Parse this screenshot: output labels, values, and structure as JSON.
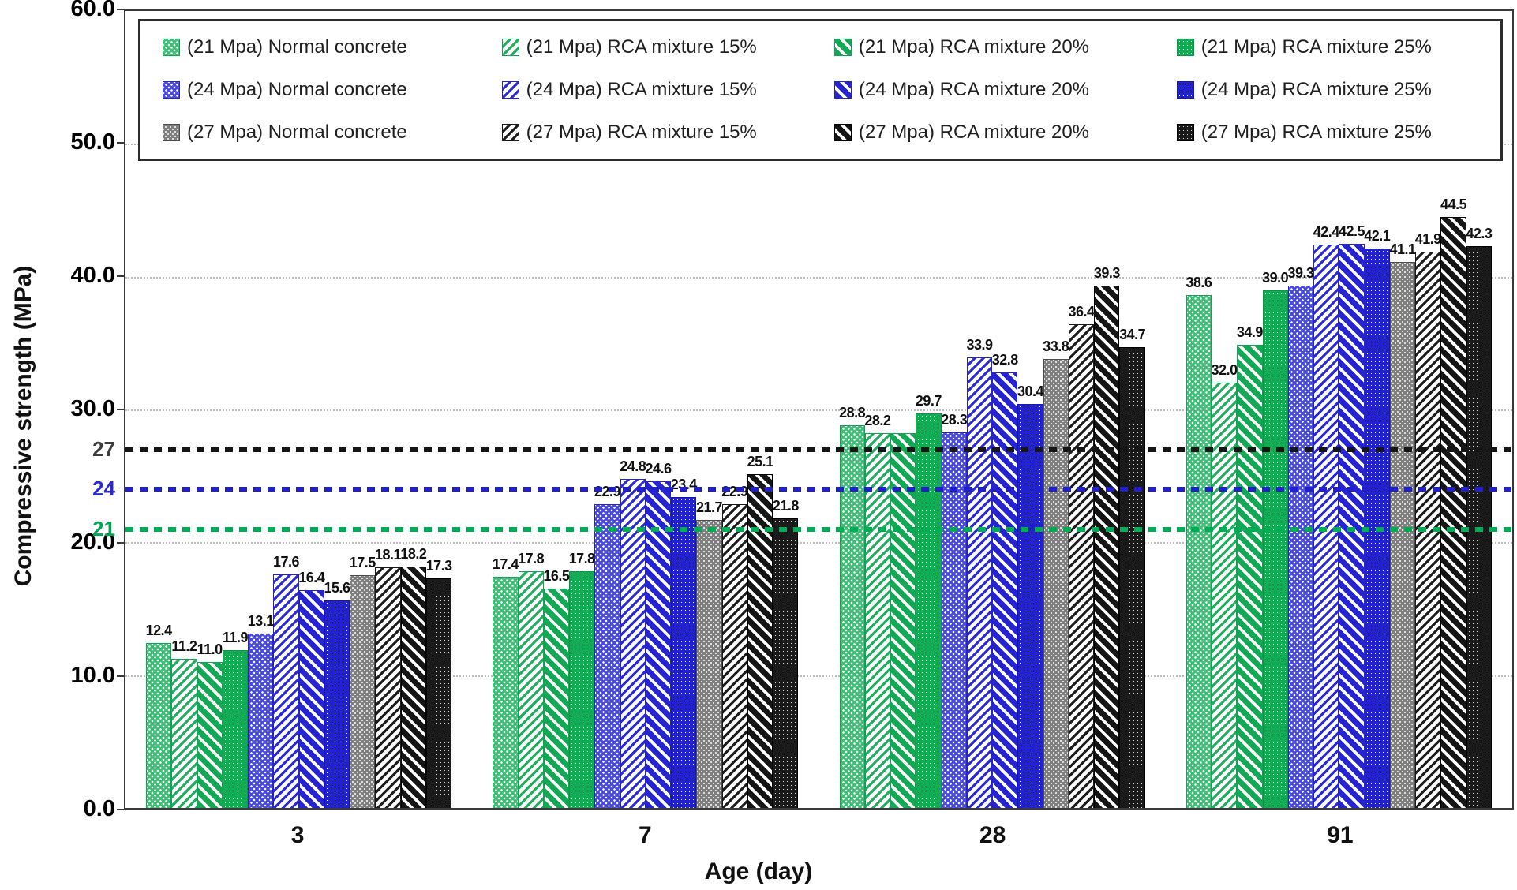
{
  "chart_data": {
    "type": "bar",
    "title": "",
    "xlabel": "Age (day)",
    "ylabel": "Compressive strength (MPa)",
    "ylim": [
      0,
      60
    ],
    "grid": true,
    "legend_position": "top",
    "y_ticks": [
      {
        "value": 0,
        "label": "0.0"
      },
      {
        "value": 10,
        "label": "10.0"
      },
      {
        "value": 20,
        "label": "20.0"
      },
      {
        "value": 30,
        "label": "30.0"
      },
      {
        "value": 40,
        "label": "40.0"
      },
      {
        "value": 50,
        "label": "50.0"
      },
      {
        "value": 60,
        "label": "60.0"
      }
    ],
    "gridline_values": [
      10,
      20,
      30,
      40,
      50
    ],
    "extra_y_labels": [
      {
        "value": 27,
        "label": "27",
        "color": "#3d3d3d"
      },
      {
        "value": 24,
        "label": "24",
        "color": "#2a2acc"
      },
      {
        "value": 21,
        "label": "21",
        "color": "#00a651"
      }
    ],
    "reference_lines": [
      {
        "value": 27,
        "color": "#161616"
      },
      {
        "value": 24,
        "color": "#2020cf"
      },
      {
        "value": 21,
        "color": "#00ad55"
      }
    ],
    "categories": [
      "3",
      "7",
      "28",
      "91"
    ],
    "series": [
      {
        "name": "(21 Mpa) Normal concrete",
        "pattern": "g-n",
        "values": [
          12.4,
          17.4,
          28.8,
          38.6
        ],
        "labels": [
          "12.4",
          "17.4",
          "28.8",
          "38.6"
        ]
      },
      {
        "name": "(21 Mpa) RCA mixture 15%",
        "pattern": "g-15",
        "values": [
          11.2,
          17.8,
          28.2,
          32.0
        ],
        "labels": [
          "11.2",
          "17.8",
          "28.2",
          "32.0"
        ]
      },
      {
        "name": "(21 Mpa) RCA mixture 20%",
        "pattern": "g-20",
        "values": [
          11.0,
          16.5,
          28.2,
          34.9
        ],
        "labels": [
          "11.0",
          "16.5",
          "",
          "34.9"
        ]
      },
      {
        "name": "(21 Mpa) RCA mixture 25%",
        "pattern": "g-25",
        "values": [
          11.9,
          17.8,
          29.7,
          39.0
        ],
        "labels": [
          "11.9",
          "17.8",
          "29.7",
          "39.0"
        ]
      },
      {
        "name": "(24 Mpa) Normal concrete",
        "pattern": "b-n",
        "values": [
          13.1,
          22.9,
          28.3,
          39.3
        ],
        "labels": [
          "13.1",
          "22.9",
          "28.3",
          "39.3"
        ]
      },
      {
        "name": "(24 Mpa) RCA mixture 15%",
        "pattern": "b-15",
        "values": [
          17.6,
          24.8,
          33.9,
          42.4
        ],
        "labels": [
          "17.6",
          "24.8",
          "33.9",
          "42.4"
        ]
      },
      {
        "name": "(24 Mpa) RCA mixture 20%",
        "pattern": "b-20",
        "values": [
          16.4,
          24.6,
          32.8,
          42.5
        ],
        "labels": [
          "16.4",
          "24.6",
          "32.8",
          "42.5"
        ]
      },
      {
        "name": "(24 Mpa) RCA mixture 25%",
        "pattern": "b-25",
        "values": [
          15.6,
          23.4,
          30.4,
          42.1
        ],
        "labels": [
          "15.6",
          "23.4",
          "30.4",
          "42.1"
        ]
      },
      {
        "name": "(27 Mpa) Normal concrete",
        "pattern": "k-n",
        "values": [
          17.5,
          21.7,
          33.8,
          41.1
        ],
        "labels": [
          "17.5",
          "21.7",
          "33.8",
          "41.1"
        ]
      },
      {
        "name": "(27 Mpa) RCA mixture 15%",
        "pattern": "k-15",
        "values": [
          18.1,
          22.9,
          36.4,
          41.9
        ],
        "labels": [
          "18.1",
          "22.9",
          "36.4",
          "41.9"
        ]
      },
      {
        "name": "(27 Mpa) RCA mixture 20%",
        "pattern": "k-20",
        "values": [
          18.2,
          25.1,
          39.3,
          44.5
        ],
        "labels": [
          "18.2",
          "25.1",
          "39.3",
          "44.5"
        ]
      },
      {
        "name": "(27 Mpa) RCA mixture 25%",
        "pattern": "k-25",
        "values": [
          17.3,
          21.8,
          34.7,
          42.3
        ],
        "labels": [
          "17.3",
          "21.8",
          "34.7",
          "42.3"
        ]
      }
    ],
    "colors": {
      "green": "#00ad55",
      "blue": "#2424d2",
      "gray": "#7f7f7f",
      "black": "#1a1a1a"
    }
  }
}
